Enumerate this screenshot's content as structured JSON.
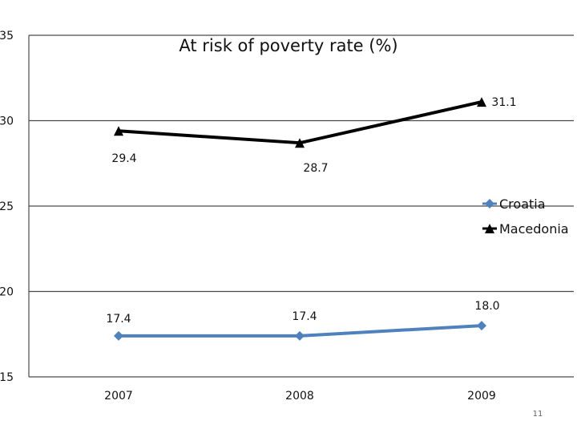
{
  "chart_data": {
    "type": "line",
    "title": "At risk of poverty rate (%)",
    "categories": [
      "2007",
      "2008",
      "2009"
    ],
    "ylim": [
      15,
      35
    ],
    "yticks": [
      15,
      20,
      25,
      30,
      35
    ],
    "grid": true,
    "legend_position": "right",
    "series": [
      {
        "name": "Croatia",
        "values": [
          17.4,
          17.4,
          18.0
        ],
        "labels": [
          "17.4",
          "17.4",
          "18.0"
        ],
        "color": "#4f81bd",
        "marker": "diamond"
      },
      {
        "name": "Macedonia",
        "values": [
          29.4,
          28.7,
          31.1
        ],
        "labels": [
          "29.4",
          "28.7",
          "31.1"
        ],
        "color": "#000000",
        "marker": "triangle"
      }
    ]
  },
  "page_number": "11"
}
